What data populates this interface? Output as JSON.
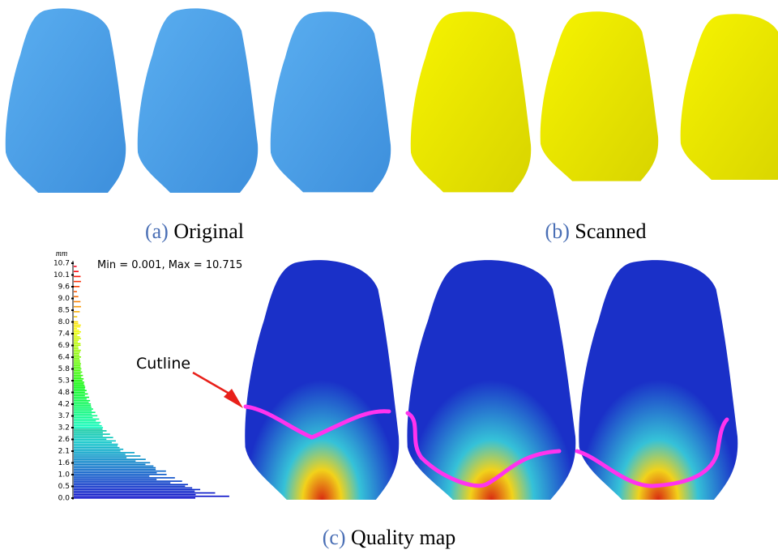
{
  "captions": [
    {
      "label": "(a)",
      "text": "Original"
    },
    {
      "label": "(b)",
      "text": "Scanned"
    },
    {
      "label": "(c)",
      "text": "Quality map"
    }
  ],
  "histogram": {
    "unit": "mm",
    "range_text": "Min = 0.001, Max = 10.715",
    "ticks": [
      "10.7",
      "10.1",
      "9.6",
      "9.0",
      "8.5",
      "8.0",
      "7.4",
      "6.9",
      "6.4",
      "5.8",
      "5.3",
      "4.8",
      "4.2",
      "3.7",
      "3.2",
      "2.6",
      "2.1",
      "1.6",
      "1.0",
      "0.5",
      "0.0"
    ]
  },
  "annotation": "Cutline"
}
